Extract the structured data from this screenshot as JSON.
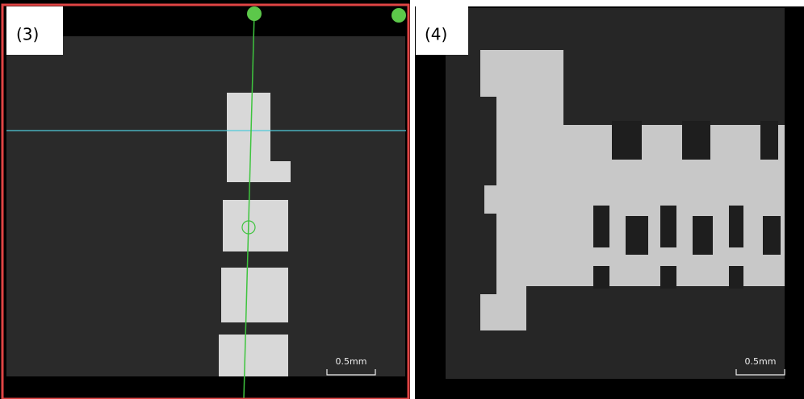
{
  "panels": [
    {
      "label": "(3)",
      "scale_bar": "0.5mm"
    },
    {
      "label": "(4)",
      "scale_bar": "0.5mm"
    }
  ]
}
